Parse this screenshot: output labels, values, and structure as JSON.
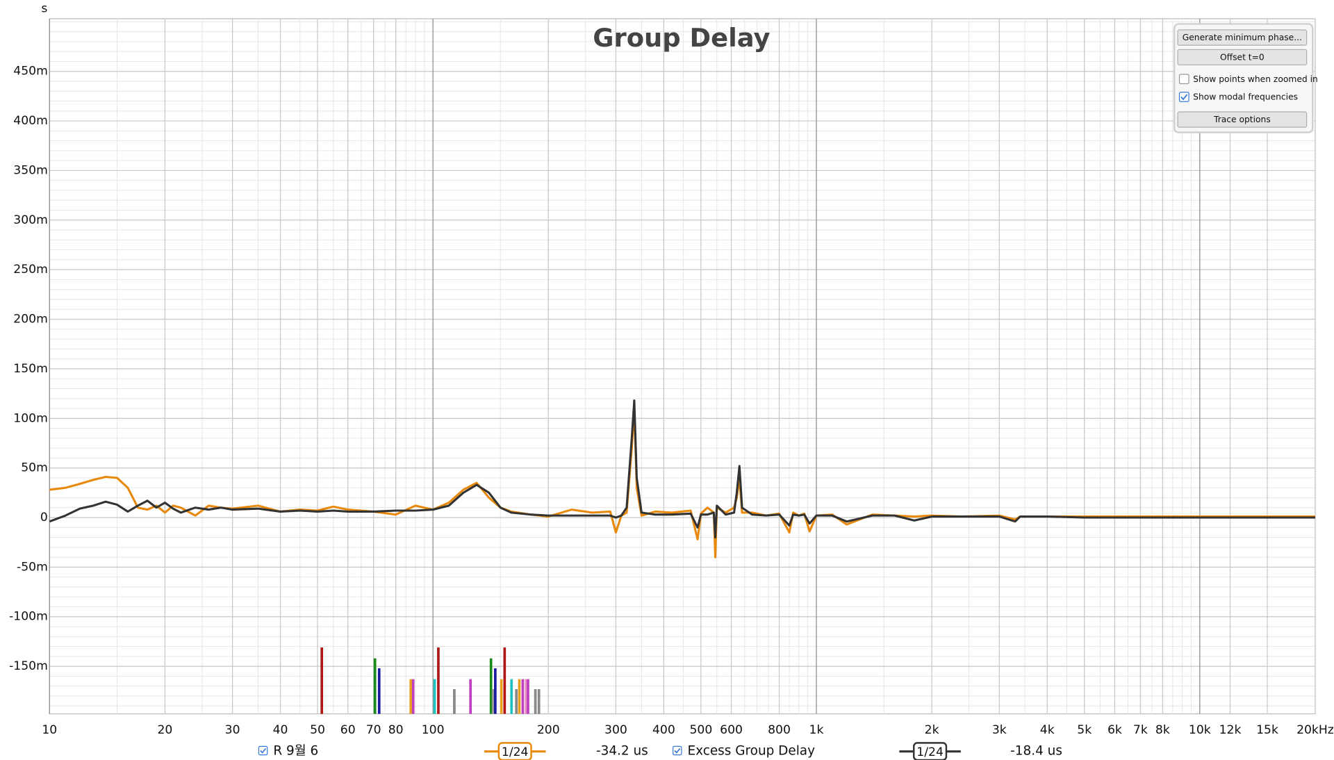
{
  "chart_data": {
    "type": "line",
    "title": "Group Delay",
    "y_unit": "s",
    "x_scale": "log",
    "grid": true,
    "xlim": [
      10,
      20000
    ],
    "ylim": [
      -0.198,
      0.503
    ],
    "xticks": [
      10,
      20,
      30,
      40,
      50,
      60,
      70,
      80,
      100,
      200,
      300,
      400,
      500,
      600,
      800,
      {
        "value": 1000,
        "label": "1k"
      },
      {
        "value": 2000,
        "label": "2k"
      },
      {
        "value": 3000,
        "label": "3k"
      },
      {
        "value": 4000,
        "label": "4k"
      },
      {
        "value": 5000,
        "label": "5k"
      },
      {
        "value": 6000,
        "label": "6k"
      },
      {
        "value": 7000,
        "label": "7k"
      },
      {
        "value": 8000,
        "label": "8k"
      },
      {
        "value": 10000,
        "label": "10k"
      },
      {
        "value": 12000,
        "label": "12k"
      },
      {
        "value": 15000,
        "label": "15k"
      },
      {
        "value": 20000,
        "label": "20kHz"
      }
    ],
    "yticks": [
      {
        "value": 0.45,
        "label": "450m"
      },
      {
        "value": 0.4,
        "label": "400m"
      },
      {
        "value": 0.35,
        "label": "350m"
      },
      {
        "value": 0.3,
        "label": "300m"
      },
      {
        "value": 0.25,
        "label": "250m"
      },
      {
        "value": 0.2,
        "label": "200m"
      },
      {
        "value": 0.15,
        "label": "150m"
      },
      {
        "value": 0.1,
        "label": "100m"
      },
      {
        "value": 0.05,
        "label": "50m"
      },
      0,
      {
        "value": -0.05,
        "label": "-50m"
      },
      {
        "value": -0.1,
        "label": "-100m"
      },
      {
        "value": -0.15,
        "label": "-150m"
      }
    ],
    "x": [
      10,
      11,
      12,
      13,
      14,
      15,
      16,
      17,
      18,
      19,
      20,
      21,
      22,
      24,
      26,
      28,
      30,
      35,
      40,
      45,
      50,
      55,
      60,
      70,
      80,
      90,
      100,
      110,
      120,
      130,
      140,
      150,
      160,
      180,
      200,
      230,
      260,
      290,
      300,
      310,
      320,
      330,
      335,
      340,
      350,
      380,
      420,
      470,
      490,
      500,
      520,
      540,
      545,
      550,
      580,
      610,
      620,
      630,
      640,
      680,
      740,
      800,
      850,
      870,
      900,
      930,
      960,
      1000,
      1100,
      1200,
      1400,
      1600,
      1800,
      2000,
      2400,
      3000,
      3300,
      3400,
      4000,
      5000,
      7000,
      10000,
      20000
    ],
    "series": [
      {
        "name": "R 9월 6",
        "color": "#e8890c",
        "smoothing": "1/24",
        "readout": "-34.2 us",
        "checked": true,
        "values": [
          0.028,
          0.03,
          0.034,
          0.038,
          0.041,
          0.04,
          0.03,
          0.01,
          0.008,
          0.012,
          0.005,
          0.012,
          0.01,
          0.002,
          0.012,
          0.01,
          0.009,
          0.012,
          0.006,
          0.008,
          0.007,
          0.011,
          0.008,
          0.006,
          0.003,
          0.012,
          0.008,
          0.015,
          0.028,
          0.035,
          0.02,
          0.01,
          0.006,
          0.003,
          0.001,
          0.008,
          0.005,
          0.006,
          -0.015,
          0.002,
          0.005,
          0.07,
          0.11,
          0.03,
          0.002,
          0.006,
          0.005,
          0.007,
          -0.022,
          0.004,
          0.01,
          0.005,
          -0.04,
          0.01,
          0.005,
          0.01,
          0.02,
          0.04,
          0.005,
          0.005,
          0.002,
          0.004,
          -0.015,
          0.005,
          0.002,
          0.004,
          -0.014,
          0.002,
          0.003,
          -0.007,
          0.003,
          0.002,
          0.001,
          0.002,
          0.001,
          0.002,
          -0.002,
          0.001,
          0.001,
          0.001,
          0.001,
          0.001,
          0.001
        ]
      },
      {
        "name": "Excess Group Delay",
        "color": "#333333",
        "smoothing": "1/24",
        "readout": "-18.4 us",
        "checked": true,
        "values": [
          -0.004,
          0.002,
          0.009,
          0.012,
          0.016,
          0.013,
          0.006,
          0.012,
          0.017,
          0.01,
          0.015,
          0.009,
          0.005,
          0.01,
          0.008,
          0.01,
          0.008,
          0.009,
          0.006,
          0.007,
          0.006,
          0.007,
          0.006,
          0.006,
          0.007,
          0.007,
          0.008,
          0.012,
          0.025,
          0.033,
          0.025,
          0.01,
          0.005,
          0.003,
          0.002,
          0.002,
          0.002,
          0.002,
          0.0,
          0.002,
          0.01,
          0.08,
          0.118,
          0.04,
          0.005,
          0.003,
          0.003,
          0.004,
          -0.01,
          0.003,
          0.003,
          0.005,
          -0.02,
          0.012,
          0.003,
          0.005,
          0.025,
          0.052,
          0.01,
          0.003,
          0.002,
          0.003,
          -0.008,
          0.003,
          0.002,
          0.003,
          -0.006,
          0.002,
          0.002,
          -0.004,
          0.002,
          0.002,
          -0.003,
          0.001,
          0.001,
          0.001,
          -0.004,
          0.001,
          0.001,
          0.0,
          0.0,
          0.0,
          0.0
        ]
      }
    ],
    "modal_frequencies": {
      "x": [
        51.3,
        70.6,
        72.4,
        87.5,
        88.8,
        101,
        103.3,
        113.7,
        125.3,
        141.7,
        143.5,
        145.4,
        150.8,
        153.8,
        160.3,
        165,
        168,
        171.5,
        175,
        177,
        185,
        189
      ],
      "y": [
        -0.131,
        -0.142,
        -0.152,
        -0.163,
        -0.163,
        -0.163,
        -0.131,
        -0.173,
        -0.163,
        -0.142,
        -0.173,
        -0.152,
        -0.163,
        -0.131,
        -0.163,
        -0.173,
        -0.163,
        -0.163,
        -0.163,
        -0.163,
        -0.173,
        -0.173
      ],
      "colors": [
        "#b01818",
        "#1a8a1a",
        "#1a1aa0",
        "#e8a020",
        "#c040c0",
        "#20c0c0",
        "#b01818",
        "#888888",
        "#c040c0",
        "#1a8a1a",
        "#999999",
        "#1a1aa0",
        "#e8a020",
        "#b01818",
        "#20c0c0",
        "#888888",
        "#e8a020",
        "#c040c0",
        "#e890c0",
        "#c040c0",
        "#888888",
        "#888888"
      ]
    },
    "controls": {
      "buttons": [
        "Generate minimum phase...",
        "Offset t=0",
        "Trace options"
      ],
      "checkboxes": [
        {
          "label": "Show points when zoomed in",
          "checked": false
        },
        {
          "label": "Show modal frequencies",
          "checked": true
        }
      ]
    }
  }
}
